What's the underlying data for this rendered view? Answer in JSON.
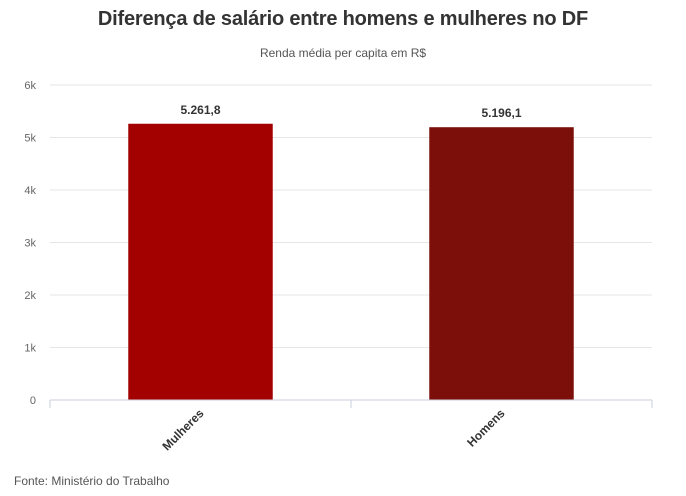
{
  "header": {
    "title": "Diferença de salário entre homens e mulheres no DF",
    "subtitle": "Renda média per capita em R$"
  },
  "footer": {
    "source": "Fonte: Ministério do Trabalho"
  },
  "chart_data": {
    "type": "bar",
    "title": "Diferença de salário entre homens e mulheres no DF",
    "subtitle": "Renda média per capita em R$",
    "categories": [
      "Mulheres",
      "Homens"
    ],
    "values": [
      5261.8,
      5196.1
    ],
    "data_labels": [
      "5.261,8",
      "5.196,1"
    ],
    "colors": [
      "#a30000",
      "#7d0f0a"
    ],
    "ylim": [
      0,
      6000
    ],
    "yticks": [
      0,
      1000,
      2000,
      3000,
      4000,
      5000,
      6000
    ],
    "ytick_labels": [
      "0",
      "1k",
      "2k",
      "3k",
      "4k",
      "5k",
      "6k"
    ],
    "xlabel": "",
    "ylabel": "",
    "grid": true,
    "legend": "none"
  }
}
